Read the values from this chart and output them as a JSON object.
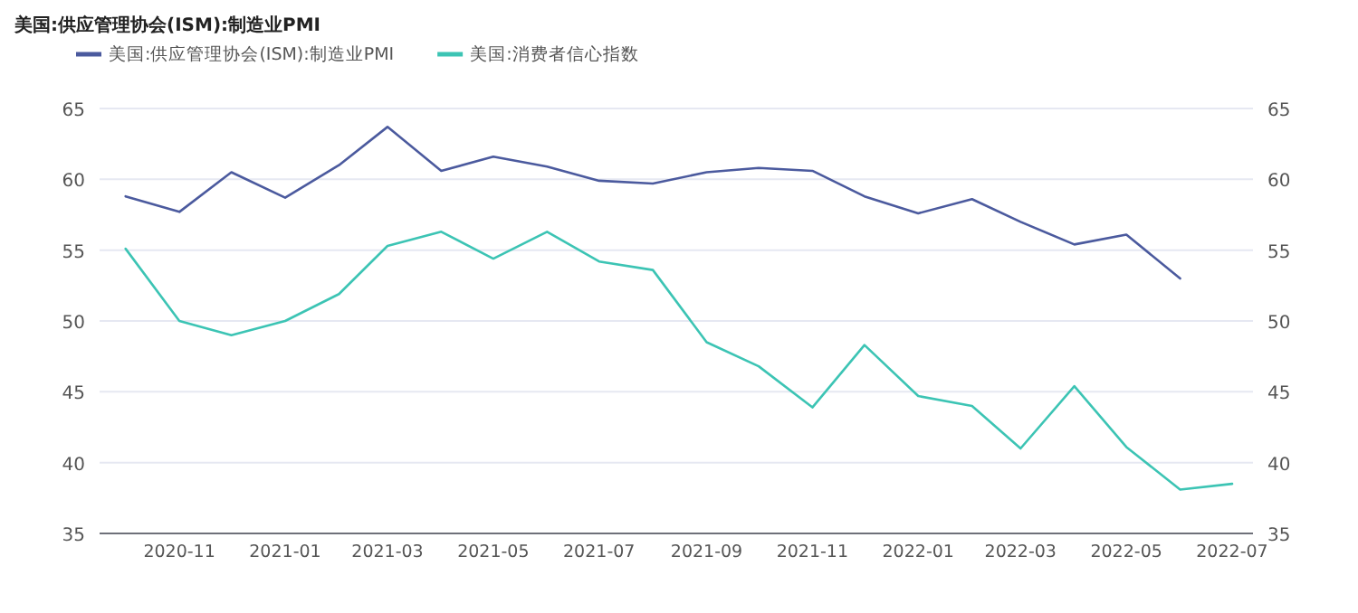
{
  "chart_data": {
    "type": "line",
    "title": "美国:供应管理协会(ISM):制造业PMI",
    "x": [
      "2020-10",
      "2020-11",
      "2020-12",
      "2021-01",
      "2021-02",
      "2021-03",
      "2021-04",
      "2021-05",
      "2021-06",
      "2021-07",
      "2021-08",
      "2021-09",
      "2021-10",
      "2021-11",
      "2021-12",
      "2022-01",
      "2022-02",
      "2022-03",
      "2022-04",
      "2022-05",
      "2022-06",
      "2022-07"
    ],
    "series": [
      {
        "name": "美国:供应管理协会(ISM):制造业PMI",
        "color": "#4b5a9e",
        "values": [
          58.8,
          57.7,
          60.5,
          58.7,
          61.0,
          63.7,
          60.6,
          61.6,
          60.9,
          59.9,
          59.7,
          60.5,
          60.8,
          60.6,
          58.8,
          57.6,
          58.6,
          57.0,
          55.4,
          56.1,
          53.0,
          null
        ]
      },
      {
        "name": "美国:消费者信心指数",
        "color": "#3cc4b4",
        "values": [
          55.1,
          50.0,
          49.0,
          50.0,
          51.9,
          55.3,
          56.3,
          54.4,
          56.3,
          54.2,
          53.6,
          48.5,
          46.8,
          43.9,
          48.3,
          44.7,
          44.0,
          41.0,
          45.4,
          41.1,
          38.1,
          38.5
        ]
      }
    ],
    "xlim": [
      "2020-09-16",
      "2022-07-13"
    ],
    "xticks": [
      "2020-11",
      "2021-01",
      "2021-03",
      "2021-05",
      "2021-07",
      "2021-09",
      "2021-11",
      "2022-01",
      "2022-03",
      "2022-05",
      "2022-07"
    ],
    "ylim": [
      35,
      65
    ],
    "yticks": [
      35,
      40,
      45,
      50,
      55,
      60,
      65
    ],
    "y2lim": [
      35,
      65
    ],
    "y2ticks": [
      35,
      40,
      45,
      50,
      55,
      60,
      65
    ],
    "grid": "y",
    "legend": "top left"
  }
}
